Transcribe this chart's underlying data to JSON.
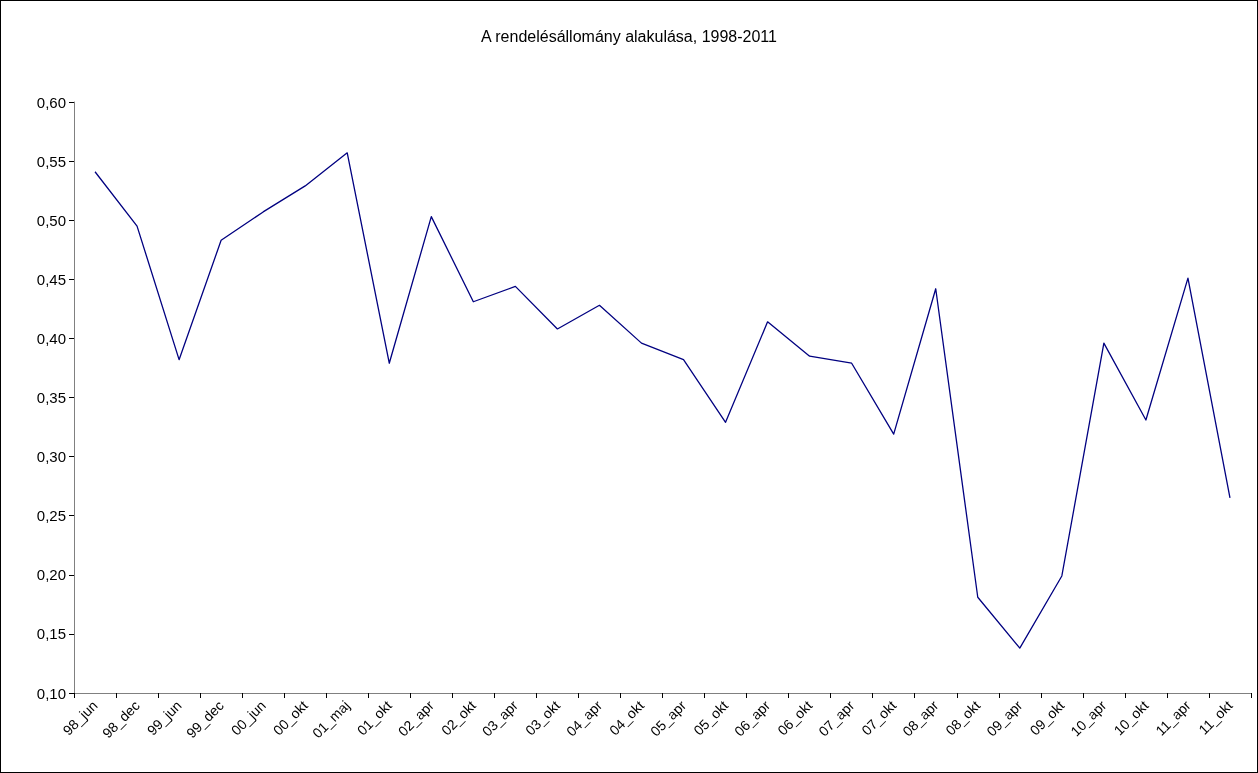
{
  "chart_data": {
    "type": "line",
    "title": "A rendelésállomány alakulása, 1998-2011",
    "categories": [
      "98_jun",
      "98_dec",
      "99_jun",
      "99_dec",
      "00_jun",
      "00_okt",
      "01_maj",
      "01_okt",
      "02_apr",
      "02_okt",
      "03_apr",
      "03_okt",
      "04_apr",
      "04_okt",
      "05_apr",
      "05_okt",
      "06_apr",
      "06_okt",
      "07_apr",
      "07_okt",
      "08_apr",
      "08_okt",
      "09_apr",
      "09_okt",
      "10_apr",
      "10_okt",
      "11_apr",
      "11_okt"
    ],
    "series": [
      {
        "color": "#000080",
        "values": [
          0.541,
          0.495,
          0.382,
          0.483,
          0.507,
          0.529,
          0.557,
          0.379,
          0.503,
          0.431,
          0.444,
          0.408,
          0.428,
          0.396,
          0.382,
          0.329,
          0.414,
          0.385,
          0.379,
          0.319,
          0.442,
          0.181,
          0.138,
          0.199,
          0.396,
          0.331,
          0.451,
          0.265
        ]
      }
    ],
    "ylim": [
      0.1,
      0.6
    ],
    "yticks": [
      {
        "value": 0.1,
        "label": "0,10"
      },
      {
        "value": 0.15,
        "label": "0,15"
      },
      {
        "value": 0.2,
        "label": "0,20"
      },
      {
        "value": 0.25,
        "label": "0,25"
      },
      {
        "value": 0.3,
        "label": "0,30"
      },
      {
        "value": 0.35,
        "label": "0,35"
      },
      {
        "value": 0.4,
        "label": "0,40"
      },
      {
        "value": 0.45,
        "label": "0,45"
      },
      {
        "value": 0.5,
        "label": "0,50"
      },
      {
        "value": 0.55,
        "label": "0,55"
      },
      {
        "value": 0.6,
        "label": "0,60"
      }
    ],
    "grid": false,
    "marker": "none",
    "line_style": "solid"
  }
}
